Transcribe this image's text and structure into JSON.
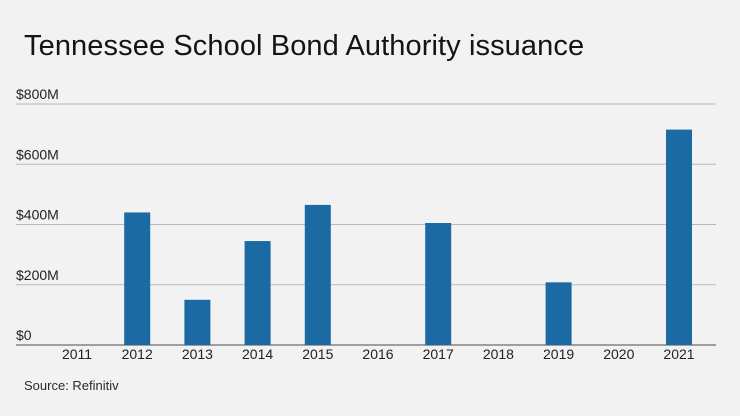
{
  "chart_data": {
    "type": "bar",
    "title": "Tennessee School Bond Authority issuance",
    "categories": [
      "2011",
      "2012",
      "2013",
      "2014",
      "2015",
      "2016",
      "2017",
      "2018",
      "2019",
      "2020",
      "2021"
    ],
    "series": [
      {
        "values": [
          0,
          440,
          150,
          345,
          465,
          0,
          405,
          0,
          208,
          0,
          715
        ]
      }
    ],
    "unit": "USD millions",
    "ylim": [
      0,
      800
    ],
    "yticks": [
      0,
      200,
      400,
      600,
      800
    ],
    "ytick_labels": [
      "$0",
      "$200M",
      "$400M",
      "$600M",
      "$800M"
    ],
    "grid": true,
    "bar_color": "#1c6aa3",
    "source": "Source: Refinitiv"
  }
}
